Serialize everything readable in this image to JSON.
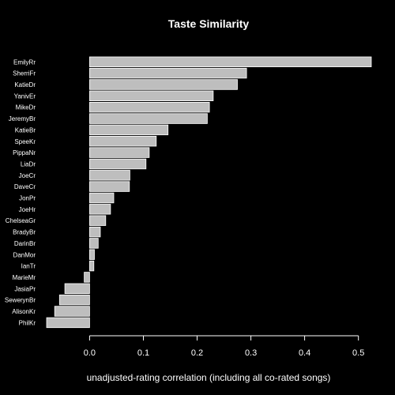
{
  "chart_data": {
    "type": "bar",
    "orientation": "horizontal",
    "title": "Taste Similarity",
    "xlabel": "unadjusted-rating correlation (including all co-rated songs)",
    "ylabel": "",
    "categories": [
      "EmilyRr",
      "SherriFr",
      "KatieDr",
      "YanivEr",
      "MikeDr",
      "JeremyBr",
      "KatieBr",
      "SpeeKr",
      "PippaNr",
      "LiaDr",
      "JoeCr",
      "DaveCr",
      "JonPr",
      "JoeHr",
      "ChelseaGr",
      "BradyBr",
      "DarinBr",
      "DanMor",
      "IanTr",
      "MarieMr",
      "JasiaPr",
      "SewerynBr",
      "AlisonKr",
      "PhilKr"
    ],
    "values": [
      0.524,
      0.292,
      0.275,
      0.23,
      0.223,
      0.219,
      0.146,
      0.124,
      0.111,
      0.105,
      0.075,
      0.074,
      0.045,
      0.039,
      0.03,
      0.02,
      0.016,
      0.009,
      0.008,
      -0.01,
      -0.046,
      -0.056,
      -0.065,
      -0.08
    ],
    "xticks": [
      "0.0",
      "0.1",
      "0.2",
      "0.3",
      "0.4",
      "0.5"
    ],
    "xtick_values": [
      0.0,
      0.1,
      0.2,
      0.3,
      0.4,
      0.5
    ],
    "xlim": [
      -0.08,
      0.524
    ],
    "grid": false,
    "colors": {
      "background": "#000000",
      "bar_fill": "#bebebe",
      "bar_stroke": "#ffffff",
      "text": "#ffffff"
    }
  }
}
